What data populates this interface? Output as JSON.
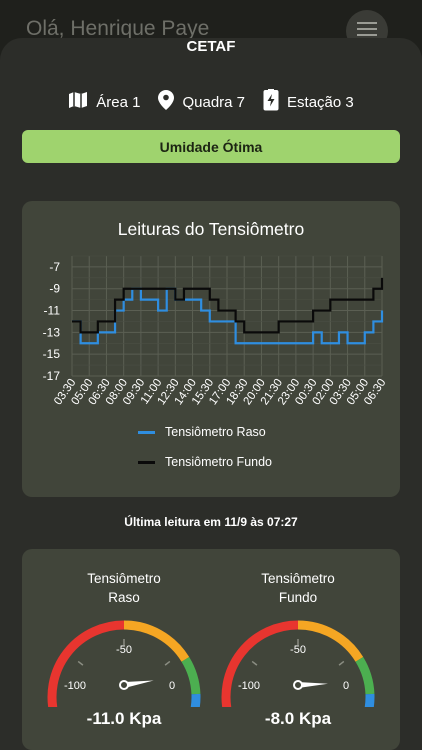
{
  "header": {
    "greeting": "Olá, Henrique Paye"
  },
  "sheet": {
    "title": "CETAF"
  },
  "location": {
    "area": "Área 1",
    "block": "Quadra 7",
    "station": "Estação 3"
  },
  "status": {
    "label": "Umidade Ótima",
    "color": "#9fd36e"
  },
  "chart": {
    "title": "Leituras do Tensiômetro",
    "legend_shallow": "Tensiômetro Raso",
    "legend_deep": "Tensiômetro Fundo"
  },
  "chart_data": {
    "type": "line",
    "title": "Leituras do Tensiômetro",
    "xlabel": "",
    "ylabel": "",
    "ylim": [
      -17,
      -6
    ],
    "yticks": [
      -7,
      -9,
      -11,
      -13,
      -15,
      -17
    ],
    "x_tick_labels": [
      "03:30",
      "05:00",
      "06:30",
      "08:00",
      "09:30",
      "11:00",
      "12:30",
      "14:00",
      "15:30",
      "17:00",
      "18:30",
      "20:00",
      "21:30",
      "23:00",
      "00:30",
      "02:00",
      "03:30",
      "05:00",
      "06:30"
    ],
    "grid": true,
    "legend_position": "bottom",
    "series": [
      {
        "name": "Tensiômetro Raso",
        "color": "#2f8ee0",
        "values": [
          -12,
          -14,
          -14,
          -13,
          -13,
          -11,
          -10,
          -9,
          -10,
          -10,
          -11,
          -9,
          -10,
          -10,
          -10,
          -11,
          -12,
          -12,
          -12,
          -14,
          -14,
          -14,
          -14,
          -14,
          -14,
          -14,
          -14,
          -14,
          -13,
          -14,
          -14,
          -13,
          -14,
          -14,
          -13,
          -12,
          -11
        ]
      },
      {
        "name": "Tensiômetro Fundo",
        "color": "#0a0a0a",
        "values": [
          -12,
          -13,
          -13,
          -12,
          -12,
          -10,
          -9,
          -9,
          -9,
          -9,
          -9,
          -9,
          -10,
          -9,
          -9,
          -9,
          -10,
          -11,
          -11,
          -12,
          -13,
          -13,
          -13,
          -13,
          -12,
          -12,
          -12,
          -12,
          -11,
          -11,
          -10,
          -10,
          -10,
          -10,
          -10,
          -9,
          -8
        ]
      }
    ]
  },
  "last_reading": "Última leitura em 11/9 às 07:27",
  "gauges": [
    {
      "title_line1": "Tensiômetro",
      "title_line2": "Raso",
      "value": -11.0,
      "value_text": "-11.0 Kpa",
      "min_label": "-100",
      "mid_label": "-50",
      "max_label": "0"
    },
    {
      "title_line1": "Tensiômetro",
      "title_line2": "Fundo",
      "value": -8.0,
      "value_text": "-8.0 Kpa",
      "min_label": "-100",
      "mid_label": "-50",
      "max_label": "0"
    }
  ]
}
